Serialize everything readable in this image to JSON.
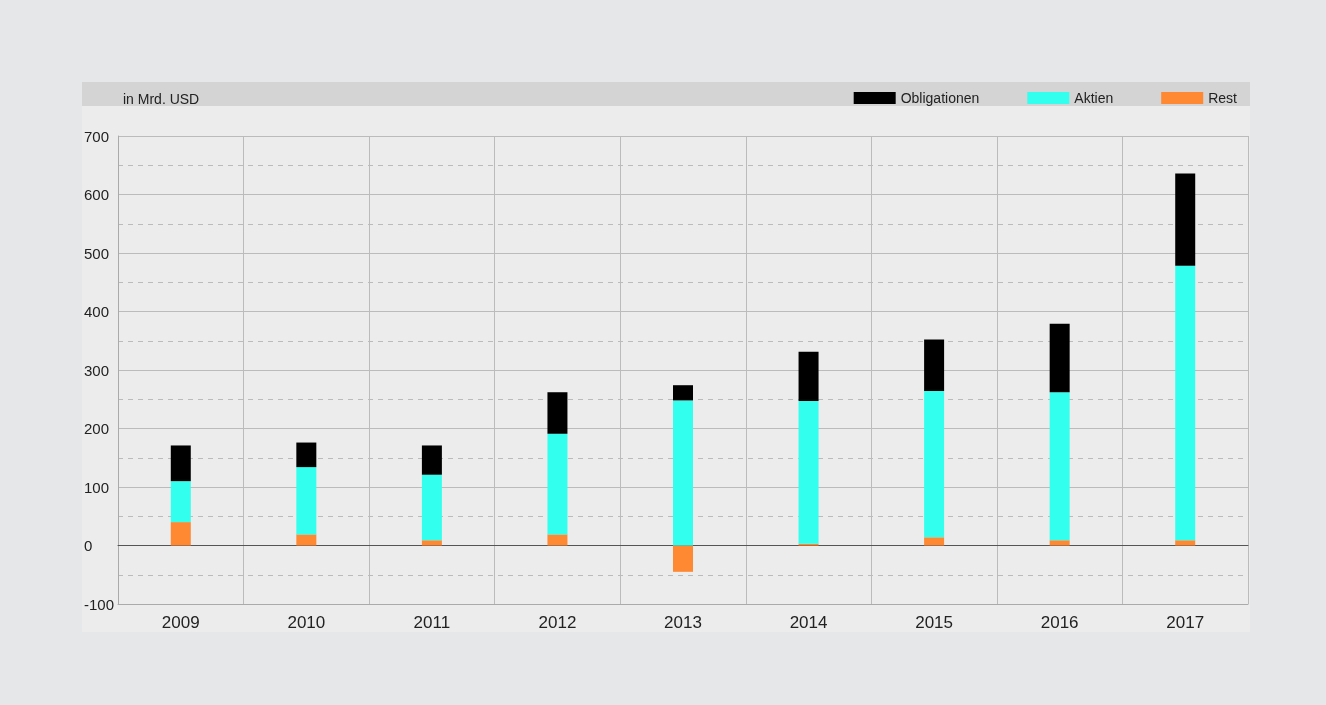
{
  "chart_data": {
    "type": "bar",
    "stacked": true,
    "ylabel": "in Mrd. USD",
    "categories": [
      "2009",
      "2010",
      "2011",
      "2012",
      "2013",
      "2014",
      "2015",
      "2016",
      "2017"
    ],
    "series": [
      {
        "name": "Rest",
        "color": "#ff8833",
        "values": [
          40,
          19,
          9,
          19,
          -45,
          3,
          14,
          9,
          9
        ]
      },
      {
        "name": "Aktien",
        "color": "#33ffee",
        "values": [
          70,
          115,
          112,
          172,
          248,
          244,
          250,
          253,
          469
        ]
      },
      {
        "name": "Obligationen",
        "color": "#000000",
        "values": [
          61,
          42,
          50,
          71,
          26,
          84,
          88,
          117,
          158
        ]
      }
    ],
    "ylim": [
      -100,
      700
    ],
    "yticks": [
      -100,
      0,
      100,
      200,
      300,
      400,
      500,
      600,
      700
    ],
    "grid": true,
    "legend": "top right"
  }
}
